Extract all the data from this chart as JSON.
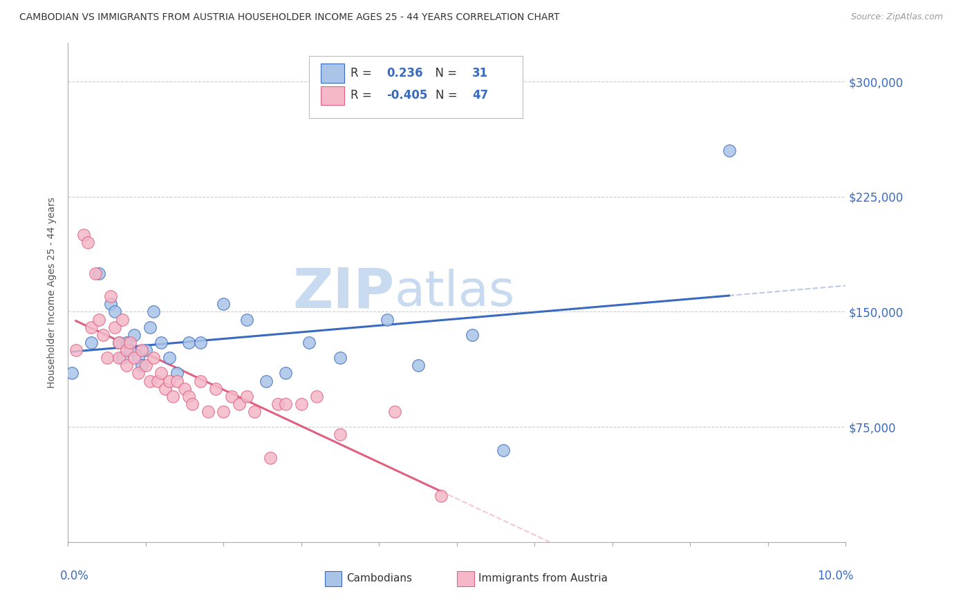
{
  "title": "CAMBODIAN VS IMMIGRANTS FROM AUSTRIA HOUSEHOLDER INCOME AGES 25 - 44 YEARS CORRELATION CHART",
  "source": "Source: ZipAtlas.com",
  "ylabel": "Householder Income Ages 25 - 44 years",
  "y_ticks": [
    75000,
    150000,
    225000,
    300000
  ],
  "y_tick_labels": [
    "$75,000",
    "$150,000",
    "$225,000",
    "$300,000"
  ],
  "x_min": 0.0,
  "x_max": 10.0,
  "y_min": 0,
  "y_max": 325000,
  "cambodian_R": "0.236",
  "cambodian_N": "31",
  "austria_R": "-0.405",
  "austria_N": "47",
  "cambodian_color": "#aac4e8",
  "austria_color": "#f4b8c8",
  "cambodian_line_color": "#3a6abf",
  "austria_line_color": "#e06080",
  "watermark_zip": "ZIP",
  "watermark_atlas": "atlas",
  "watermark_color_zip": "#c8d8ef",
  "watermark_color_atlas": "#c8d8ef",
  "grid_color": "#cccccc",
  "cambodian_x": [
    0.05,
    0.3,
    0.4,
    0.55,
    0.6,
    0.65,
    0.7,
    0.75,
    0.8,
    0.85,
    0.9,
    0.95,
    1.0,
    1.05,
    1.1,
    1.2,
    1.3,
    1.4,
    1.55,
    1.7,
    2.0,
    2.3,
    2.55,
    2.8,
    3.1,
    3.5,
    4.1,
    4.5,
    5.2,
    5.6,
    8.5
  ],
  "cambodian_y": [
    110000,
    130000,
    175000,
    155000,
    150000,
    130000,
    120000,
    130000,
    125000,
    135000,
    120000,
    115000,
    125000,
    140000,
    150000,
    130000,
    120000,
    110000,
    130000,
    130000,
    155000,
    145000,
    105000,
    110000,
    130000,
    120000,
    145000,
    115000,
    135000,
    60000,
    255000
  ],
  "austria_x": [
    0.1,
    0.2,
    0.25,
    0.3,
    0.35,
    0.4,
    0.45,
    0.5,
    0.55,
    0.6,
    0.65,
    0.65,
    0.7,
    0.75,
    0.75,
    0.8,
    0.85,
    0.9,
    0.95,
    1.0,
    1.05,
    1.1,
    1.15,
    1.2,
    1.25,
    1.3,
    1.35,
    1.4,
    1.5,
    1.55,
    1.6,
    1.7,
    1.8,
    1.9,
    2.0,
    2.1,
    2.2,
    2.3,
    2.4,
    2.6,
    2.7,
    2.8,
    3.0,
    3.2,
    3.5,
    4.2,
    4.8
  ],
  "austria_y": [
    125000,
    200000,
    195000,
    140000,
    175000,
    145000,
    135000,
    120000,
    160000,
    140000,
    130000,
    120000,
    145000,
    125000,
    115000,
    130000,
    120000,
    110000,
    125000,
    115000,
    105000,
    120000,
    105000,
    110000,
    100000,
    105000,
    95000,
    105000,
    100000,
    95000,
    90000,
    105000,
    85000,
    100000,
    85000,
    95000,
    90000,
    95000,
    85000,
    55000,
    90000,
    90000,
    90000,
    95000,
    70000,
    85000,
    30000
  ]
}
